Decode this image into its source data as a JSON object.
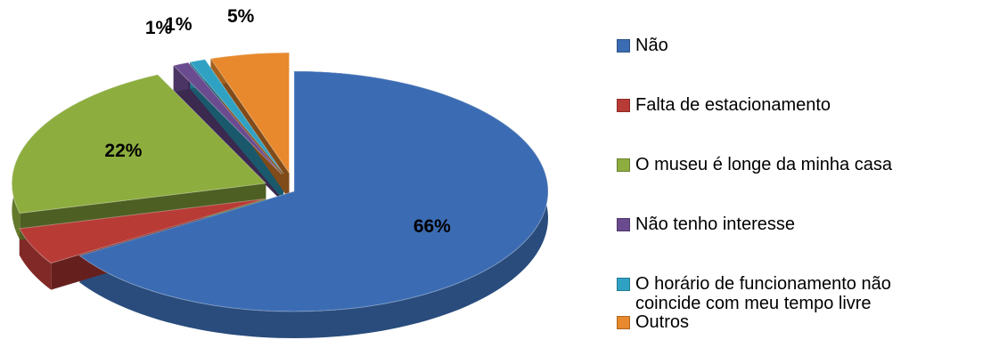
{
  "chart_data": {
    "type": "pie",
    "categories": [
      "Não",
      "Falta de estacionamento",
      "O museu é longe da minha casa",
      "Não tenho interesse",
      "O horário de funcionamento não coincide com meu tempo livre",
      "Outros"
    ],
    "values": [
      66,
      5,
      22,
      1,
      1,
      5
    ],
    "value_labels": [
      "66%",
      "5%",
      "22%",
      "1%",
      "1%",
      "5%"
    ],
    "colors": [
      "#3b6cb3",
      "#b83b36",
      "#8dad3f",
      "#6b4b8f",
      "#2fa2c4",
      "#e8892d"
    ],
    "legend": "right"
  }
}
